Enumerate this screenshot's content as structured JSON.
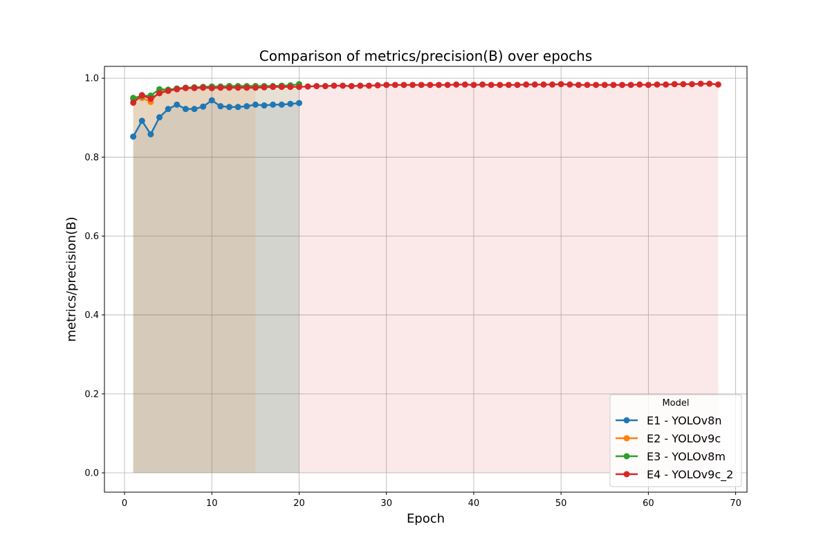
{
  "chart_data": {
    "type": "line",
    "title": "Comparison of metrics/precision(B) over epochs",
    "xlabel": "Epoch",
    "ylabel": "metrics/precision(B)",
    "xlim": [
      -2.3,
      71.3
    ],
    "ylim": [
      -0.049,
      1.03
    ],
    "xticks": [
      0,
      10,
      20,
      30,
      40,
      50,
      60,
      70
    ],
    "yticks": [
      0.0,
      0.2,
      0.4,
      0.6,
      0.8,
      1.0
    ],
    "grid": true,
    "area_fill_to_zero": true,
    "legend": {
      "title": "Model",
      "placement": "lower-right"
    },
    "series": [
      {
        "name": "E1 - YOLOv8n",
        "color": "#1f77b4",
        "fill": "rgba(31,119,180,0.1)",
        "x": [
          1,
          2,
          3,
          4,
          5,
          6,
          7,
          8,
          9,
          10,
          11,
          12,
          13,
          14,
          15,
          16,
          17,
          18,
          19,
          20
        ],
        "values": [
          0.852,
          0.892,
          0.858,
          0.901,
          0.922,
          0.933,
          0.922,
          0.922,
          0.928,
          0.944,
          0.929,
          0.927,
          0.927,
          0.929,
          0.933,
          0.931,
          0.933,
          0.933,
          0.935,
          0.937
        ]
      },
      {
        "name": "E2 - YOLOv9c",
        "color": "#ff7f0e",
        "fill": "rgba(255,127,14,0.1)",
        "x": [
          1,
          2,
          3,
          4,
          5,
          6,
          7,
          8,
          9,
          10,
          11,
          12,
          13,
          14,
          15
        ],
        "values": [
          0.947,
          0.95,
          0.94,
          0.967,
          0.97,
          0.973,
          0.976,
          0.976,
          0.977,
          0.977,
          0.977,
          0.978,
          0.978,
          0.979,
          0.98
        ]
      },
      {
        "name": "E3 - YOLOv8m",
        "color": "#2ca02c",
        "fill": "rgba(44,160,44,0.1)",
        "x": [
          1,
          2,
          3,
          4,
          5,
          6,
          7,
          8,
          9,
          10,
          11,
          12,
          13,
          14,
          15,
          16,
          17,
          18,
          19,
          20
        ],
        "values": [
          0.95,
          0.955,
          0.956,
          0.972,
          0.971,
          0.974,
          0.976,
          0.977,
          0.978,
          0.979,
          0.979,
          0.98,
          0.98,
          0.98,
          0.98,
          0.98,
          0.98,
          0.981,
          0.982,
          0.985
        ]
      },
      {
        "name": "E4 - YOLOv9c_2",
        "color": "#d62728",
        "fill": "rgba(214,39,40,0.1)",
        "x": [
          1,
          2,
          3,
          4,
          5,
          6,
          7,
          8,
          9,
          10,
          11,
          12,
          13,
          14,
          15,
          16,
          17,
          18,
          19,
          20,
          21,
          22,
          23,
          24,
          25,
          26,
          27,
          28,
          29,
          30,
          31,
          32,
          33,
          34,
          35,
          36,
          37,
          38,
          39,
          40,
          41,
          42,
          43,
          44,
          45,
          46,
          47,
          48,
          49,
          50,
          51,
          52,
          53,
          54,
          55,
          56,
          57,
          58,
          59,
          60,
          61,
          62,
          63,
          64,
          65,
          66,
          67,
          68
        ],
        "values": [
          0.938,
          0.957,
          0.948,
          0.962,
          0.968,
          0.972,
          0.975,
          0.975,
          0.976,
          0.975,
          0.976,
          0.976,
          0.976,
          0.976,
          0.976,
          0.977,
          0.978,
          0.978,
          0.978,
          0.978,
          0.979,
          0.98,
          0.98,
          0.981,
          0.981,
          0.98,
          0.981,
          0.981,
          0.982,
          0.983,
          0.983,
          0.983,
          0.983,
          0.983,
          0.983,
          0.983,
          0.983,
          0.984,
          0.984,
          0.983,
          0.984,
          0.983,
          0.983,
          0.983,
          0.983,
          0.984,
          0.984,
          0.984,
          0.984,
          0.985,
          0.984,
          0.983,
          0.983,
          0.983,
          0.983,
          0.983,
          0.983,
          0.983,
          0.984,
          0.983,
          0.984,
          0.984,
          0.985,
          0.985,
          0.985,
          0.986,
          0.986,
          0.984
        ]
      }
    ]
  }
}
